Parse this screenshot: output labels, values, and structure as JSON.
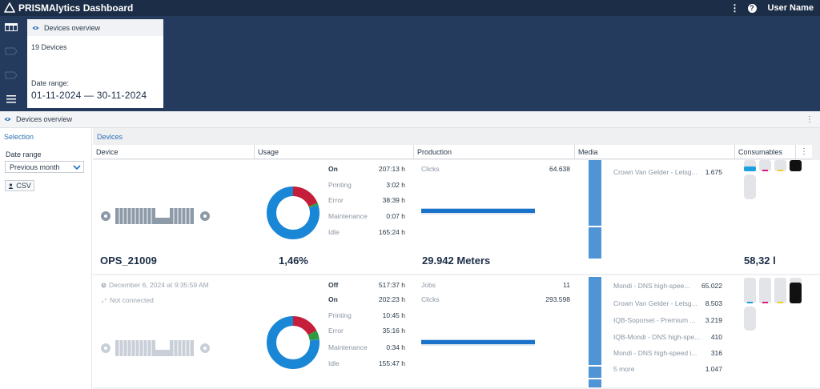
{
  "app": {
    "title": "PRISMAlytics Dashboard",
    "user": "User Name",
    "accent": "#1a72c9",
    "header_bg": "#1c2e47"
  },
  "overview_card": {
    "title": "Devices overview",
    "count": "19 Devices",
    "range_label": "Date range:",
    "range_value": "01-11-2024 — 30-11-2024"
  },
  "section": {
    "title": "Devices overview"
  },
  "selection": {
    "title": "Selection",
    "date_range_label": "Date range",
    "date_range_value": "Previous month",
    "csv_label": "CSV"
  },
  "devices": {
    "title": "Devices",
    "columns": [
      "Device",
      "Usage",
      "Production",
      "Media",
      "Consumables"
    ],
    "rows": [
      {
        "name": "OPS_21009",
        "usage_percent": "1,46%",
        "usage_stats": [
          {
            "label": "On",
            "value": "207:13 h"
          },
          {
            "label": "Printing",
            "value": "3:02 h"
          },
          {
            "label": "Error",
            "value": "38:39 h"
          },
          {
            "label": "Maintenance",
            "value": "0:07 h"
          },
          {
            "label": "Idle",
            "value": "165:24 h"
          }
        ],
        "donut": {
          "idle": 165.4,
          "error": 38.65,
          "printing": 3.03,
          "maintenance": 0.12
        },
        "production": [
          {
            "label": "Clicks",
            "value": "64.638"
          }
        ],
        "production_total": "29.942 Meters",
        "media": [
          {
            "label": "Crown Van Gelder - Letsg...",
            "value": "1.675"
          }
        ],
        "consumables_total": "58,32 l"
      },
      {
        "timestamp": "December 6, 2024 at 9:35:59 AM",
        "connection": "Not connected",
        "usage_stats": [
          {
            "label": "Off",
            "value": "517:37 h"
          },
          {
            "label": "On",
            "value": "202:23 h"
          },
          {
            "label": "Printing",
            "value": "10:45 h"
          },
          {
            "label": "Error",
            "value": "35:16 h"
          },
          {
            "label": "Maintenance",
            "value": "0:34 h"
          },
          {
            "label": "Idle",
            "value": "155:47 h"
          }
        ],
        "donut": {
          "idle": 155.8,
          "error": 35.27,
          "printing": 10.75,
          "maintenance": 0.57
        },
        "production": [
          {
            "label": "Jobs",
            "value": "11"
          },
          {
            "label": "Clicks",
            "value": "293.598"
          }
        ],
        "media": [
          {
            "label": "Mondi - DNS high-spee...",
            "value": "65.022"
          },
          {
            "label": "Crown Van Gelder - Letsg...",
            "value": "8.503"
          },
          {
            "label": "IQB-Soporset - Premium ...",
            "value": "3.219"
          },
          {
            "label": "IQB-Mondi - DNS high-spe...",
            "value": "410"
          },
          {
            "label": "Mondi - DNS high-speed i...",
            "value": "316"
          },
          {
            "label": "5 more",
            "value": "1.047"
          }
        ]
      }
    ]
  },
  "colors": {
    "idle": "#1a86d6",
    "error": "#c41e3a",
    "printing": "#2e9a44",
    "maintenance": "#2e9a44"
  }
}
